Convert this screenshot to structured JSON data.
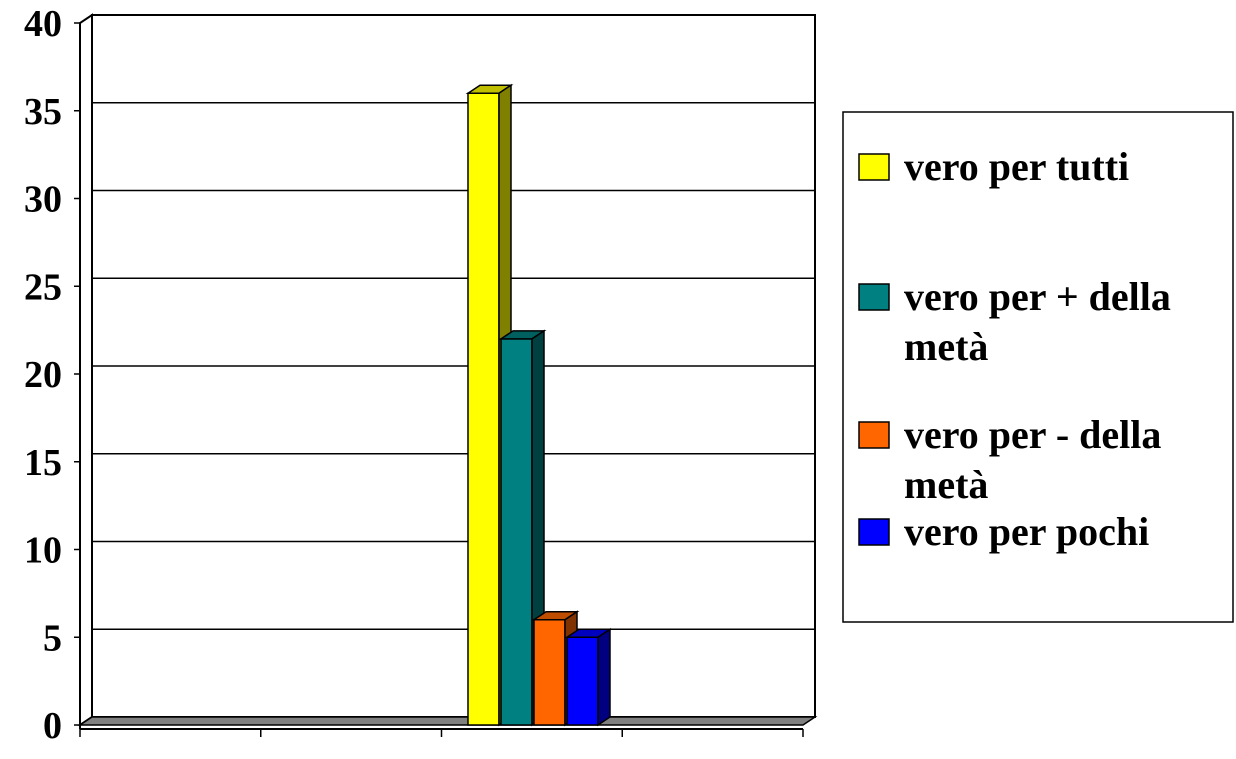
{
  "chart_data": {
    "type": "bar",
    "title": "",
    "xlabel": "",
    "ylabel": "",
    "ylim": [
      0,
      40
    ],
    "yticks": [
      "0",
      "5",
      "10",
      "15",
      "20",
      "25",
      "30",
      "35",
      "40"
    ],
    "grid": true,
    "legend_position": "right",
    "categories": [
      ""
    ],
    "series": [
      {
        "name": "vero per tutti",
        "values": [
          36
        ],
        "color": "#FFFF00"
      },
      {
        "name": "vero per + della metà",
        "values": [
          22
        ],
        "color": "#008080"
      },
      {
        "name": "vero per - della metà",
        "values": [
          6
        ],
        "color": "#FF6600"
      },
      {
        "name": "vero per pochi",
        "values": [
          5
        ],
        "color": "#0000FF"
      }
    ]
  },
  "legend": {
    "items": [
      {
        "lines": [
          "vero per tutti"
        ],
        "color": "#FFFF00"
      },
      {
        "lines": [
          "vero per + della",
          "metà"
        ],
        "color": "#008080"
      },
      {
        "lines": [
          "vero per - della",
          "metà"
        ],
        "color": "#FF6600"
      },
      {
        "lines": [
          "vero per pochi"
        ],
        "color": "#0000FF"
      }
    ]
  }
}
